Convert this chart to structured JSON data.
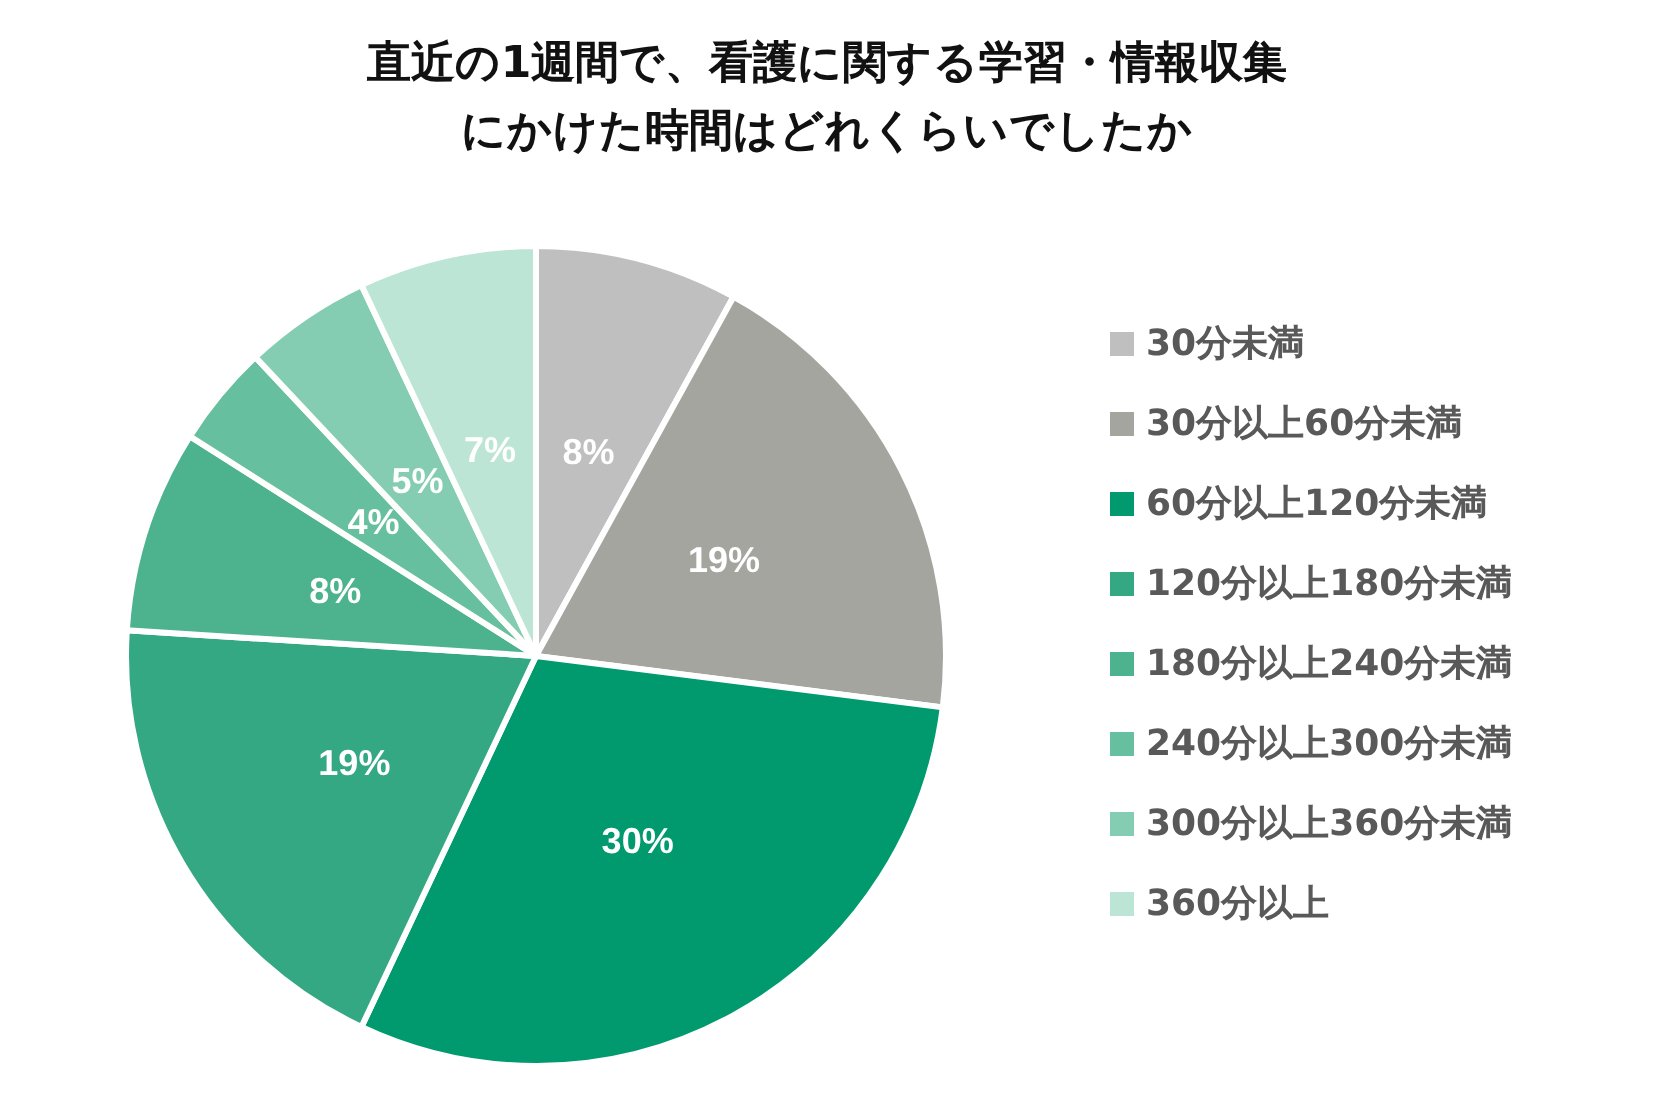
{
  "chart_data": {
    "type": "pie",
    "title": "直近の1週間で、看護に関する学習・情報収集にかけた時間はどれくらいでしたか",
    "categories": [
      "30分未満",
      "30分以上60分未満",
      "60分以上120分未満",
      "120分以上180分未満",
      "180分以上240分未満",
      "240分以上300分未満",
      "300分以上360分未満",
      "360分以上"
    ],
    "values": [
      8,
      19,
      30,
      19,
      8,
      4,
      5,
      7
    ],
    "value_labels": [
      "8%",
      "19%",
      "30%",
      "19%",
      "8%",
      "4%",
      "5%",
      "7%"
    ],
    "colors": [
      "#bfbfbf",
      "#a5a5a0",
      "#009a6e",
      "#33a882",
      "#4db38f",
      "#66bf9f",
      "#85cdb2",
      "#bde5d5"
    ],
    "legend": "right"
  }
}
